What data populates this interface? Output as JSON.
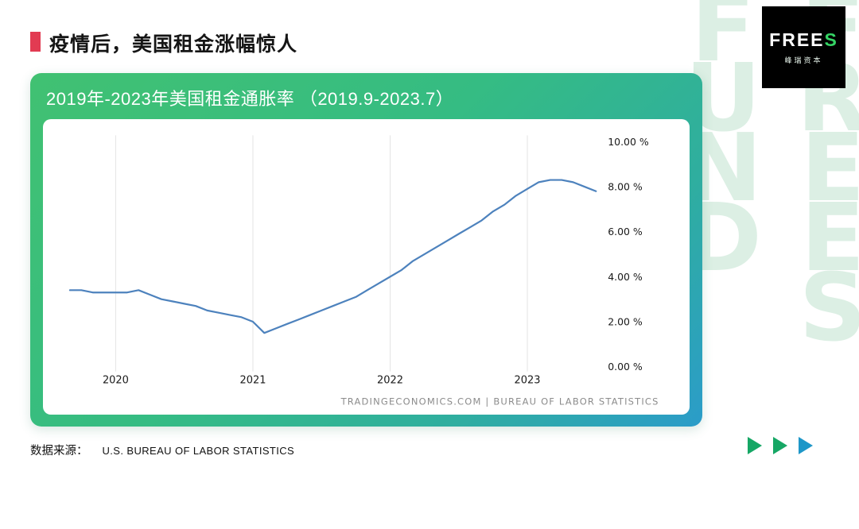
{
  "page": {
    "title": "疫情后，美国租金涨幅惊人",
    "watermark": "FREES FUND"
  },
  "logo": {
    "brand_white": "FREE",
    "brand_green": "S",
    "subtitle": "峰瑞资本"
  },
  "card": {
    "header": "2019年-2023年美国租金通胀率 （2019.9-2023.7）"
  },
  "footer": {
    "source_label": "数据来源：",
    "source_value": "U.S. BUREAU OF LABOR STATISTICS"
  },
  "colors": {
    "accent_red": "#e23b52",
    "card_gradient_start": "#41c172",
    "card_gradient_end": "#2b9cc9",
    "line_blue": "#4d82bd",
    "logo_green": "#35d465",
    "arrow_green": "#16a765",
    "arrow_blue": "#1e97c8",
    "watermark_green": "#dcefe4"
  },
  "chart_data": {
    "type": "line",
    "title": "2019年-2023年美国租金通胀率 （2019.9-2023.7）",
    "x": [
      "2019-09",
      "2019-10",
      "2019-11",
      "2019-12",
      "2020-01",
      "2020-02",
      "2020-03",
      "2020-04",
      "2020-05",
      "2020-06",
      "2020-07",
      "2020-08",
      "2020-09",
      "2020-10",
      "2020-11",
      "2020-12",
      "2021-01",
      "2021-02",
      "2021-03",
      "2021-04",
      "2021-05",
      "2021-06",
      "2021-07",
      "2021-08",
      "2021-09",
      "2021-10",
      "2021-11",
      "2021-12",
      "2022-01",
      "2022-02",
      "2022-03",
      "2022-04",
      "2022-05",
      "2022-06",
      "2022-07",
      "2022-08",
      "2022-09",
      "2022-10",
      "2022-11",
      "2022-12",
      "2023-01",
      "2023-02",
      "2023-03",
      "2023-04",
      "2023-05",
      "2023-06",
      "2023-07"
    ],
    "values": [
      3.4,
      3.4,
      3.3,
      3.3,
      3.3,
      3.3,
      3.4,
      3.2,
      3.0,
      2.9,
      2.8,
      2.7,
      2.5,
      2.4,
      2.3,
      2.2,
      2.0,
      1.5,
      1.7,
      1.9,
      2.1,
      2.3,
      2.5,
      2.7,
      2.9,
      3.1,
      3.4,
      3.7,
      4.0,
      4.3,
      4.7,
      5.0,
      5.3,
      5.6,
      5.9,
      6.2,
      6.5,
      6.9,
      7.2,
      7.6,
      7.9,
      8.2,
      8.3,
      8.3,
      8.2,
      8.0,
      7.8
    ],
    "ylim": [
      0,
      10
    ],
    "yticks": [
      "10.00 %",
      "8.00 %",
      "6.00 %",
      "4.00 %",
      "2.00 %",
      "0.00 %"
    ],
    "ytick_values": [
      10,
      8,
      6,
      4,
      2,
      0
    ],
    "xticks": [
      {
        "label": "2020",
        "month_index": 4
      },
      {
        "label": "2021",
        "month_index": 16
      },
      {
        "label": "2022",
        "month_index": 28
      },
      {
        "label": "2023",
        "month_index": 40
      }
    ],
    "line_color": "#4d82bd",
    "grid": "vertical-only",
    "legend": "none",
    "source_note": "TRADINGECONOMICS.COM | BUREAU OF LABOR STATISTICS"
  }
}
